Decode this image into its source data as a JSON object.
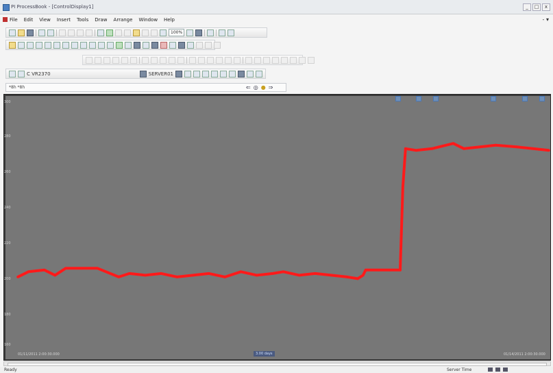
{
  "window": {
    "title": "PI ProcessBook - [ControlDisplay1]",
    "controls": [
      "_",
      "□",
      "x"
    ]
  },
  "menu": {
    "items": [
      "File",
      "Edit",
      "View",
      "Insert",
      "Tools",
      "Draw",
      "Arrange",
      "Window",
      "Help"
    ],
    "mdi_controls": "- ▾"
  },
  "toolbar": {
    "zoom_value": "100%",
    "tag_search": "C VR2370",
    "server": "SERVER01"
  },
  "time_field": {
    "label": "*8h  *8h"
  },
  "trend": {
    "start_time": "01/11/2011 2:00:30.000",
    "end_time": "01/14/2011 2:00:30.000",
    "range_label": "3.00 days",
    "y_ticks": [
      "300",
      "280",
      "260",
      "240",
      "220",
      "200",
      "180",
      "160"
    ]
  },
  "chart_data": {
    "type": "line",
    "title": "",
    "xlabel": "",
    "ylabel": "",
    "ylim": [
      160,
      300
    ],
    "grid": false,
    "series": [
      {
        "color": "#ff1a1a",
        "x": [
          0,
          0.02,
          0.05,
          0.07,
          0.09,
          0.12,
          0.15,
          0.19,
          0.21,
          0.24,
          0.27,
          0.3,
          0.33,
          0.36,
          0.39,
          0.42,
          0.45,
          0.48,
          0.5,
          0.53,
          0.56,
          0.59,
          0.62,
          0.64,
          0.65,
          0.655,
          0.68,
          0.7,
          0.72,
          0.725,
          0.73,
          0.75,
          0.78,
          0.82,
          0.84,
          0.87,
          0.9,
          0.94,
          0.97,
          1.0
        ],
        "y": [
          198,
          201,
          202,
          199,
          203,
          203,
          203,
          198,
          200,
          199,
          200,
          198,
          199,
          200,
          198,
          201,
          199,
          200,
          201,
          199,
          200,
          199,
          198,
          197,
          199,
          202,
          202,
          202,
          202,
          250,
          272,
          271,
          272,
          275,
          272,
          273,
          274,
          273,
          272,
          271
        ]
      }
    ]
  },
  "status": {
    "ready": "Ready",
    "timezone": "Server Time"
  }
}
